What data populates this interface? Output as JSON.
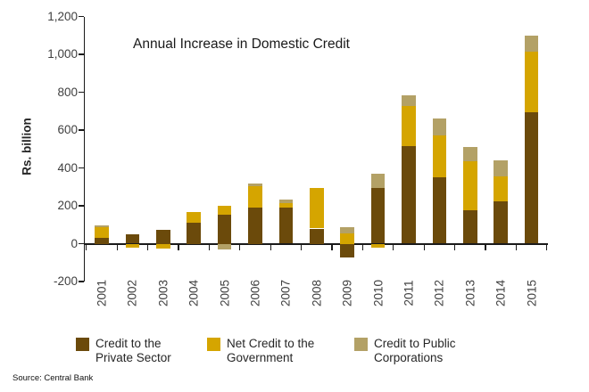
{
  "source": "Source: Central Bank",
  "chart_data": {
    "type": "bar",
    "stacked": true,
    "title": "Annual Increase in Domestic Credit",
    "ylabel": "Rs. billion",
    "ylim": [
      -200,
      1200
    ],
    "ytick_step": 200,
    "grid": false,
    "legend_position": "bottom",
    "categories": [
      "2001",
      "2002",
      "2003",
      "2004",
      "2005",
      "2006",
      "2007",
      "2008",
      "2009",
      "2010",
      "2011",
      "2012",
      "2013",
      "2014",
      "2015"
    ],
    "series": [
      {
        "name": "Credit to the Private Sector",
        "legend_lines": [
          "Credit to the",
          "Private Sector"
        ],
        "color": "#6b4a0b",
        "values": [
          30,
          48,
          75,
          110,
          155,
          190,
          192,
          80,
          -75,
          293,
          513,
          352,
          176,
          222,
          693
        ]
      },
      {
        "name": "Net Credit to the Government",
        "legend_lines": [
          "Net Credit to the",
          "Government"
        ],
        "color": "#d5a500",
        "values": [
          55,
          -22,
          -25,
          55,
          45,
          115,
          20,
          213,
          55,
          -20,
          215,
          218,
          258,
          133,
          320
        ]
      },
      {
        "name": "Credit to Public Corporations",
        "legend_lines": [
          "Credit to Public",
          "Corporations"
        ],
        "color": "#b3a166",
        "values": [
          10,
          0,
          0,
          0,
          -30,
          15,
          20,
          0,
          30,
          75,
          55,
          90,
          75,
          85,
          87
        ]
      }
    ]
  }
}
